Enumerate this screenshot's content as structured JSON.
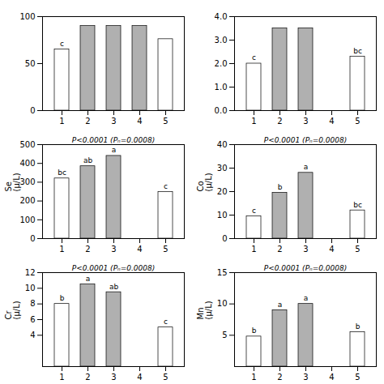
{
  "chart_data": [
    {
      "type": "bar",
      "categories": [
        "1",
        "2",
        "3",
        "4",
        "5"
      ],
      "values": [
        65,
        90,
        90,
        90,
        76
      ],
      "colors": [
        "white",
        "#b0b0b0",
        "#b0b0b0",
        "#b0b0b0",
        "white"
      ],
      "bar_labels": [
        "c",
        null,
        null,
        null,
        null
      ],
      "ylim": [
        0,
        100
      ],
      "yticks": [
        0,
        50,
        100
      ]
    },
    {
      "type": "bar",
      "categories": [
        "1",
        "2",
        "3",
        "4",
        "5"
      ],
      "values": [
        2.0,
        3.5,
        3.5,
        0,
        2.3
      ],
      "colors": [
        "white",
        "#b0b0b0",
        "#b0b0b0",
        "#b0b0b0",
        "white"
      ],
      "bar_labels": [
        "c",
        null,
        null,
        null,
        "bc"
      ],
      "ylim": [
        0,
        4
      ],
      "yticks": [
        0,
        1,
        2,
        3,
        4
      ]
    },
    {
      "type": "bar",
      "categories": [
        "1",
        "2",
        "3",
        "4",
        "5"
      ],
      "values": [
        320,
        385,
        440,
        0,
        248
      ],
      "colors": [
        "white",
        "#b0b0b0",
        "#b0b0b0",
        "#b0b0b0",
        "white"
      ],
      "bar_labels": [
        "bc",
        "ab",
        "a",
        null,
        "c"
      ],
      "ylabel": "Se\n(μ/L)",
      "annotation": "P<0.0001 (Pₙ=0.0008)",
      "ylim": [
        0,
        500
      ],
      "yticks": [
        0,
        100,
        200,
        300,
        400,
        500
      ]
    },
    {
      "type": "bar",
      "categories": [
        "1",
        "2",
        "3",
        "4",
        "5"
      ],
      "values": [
        9.5,
        19.5,
        28,
        0,
        12
      ],
      "colors": [
        "white",
        "#b0b0b0",
        "#b0b0b0",
        "#b0b0b0",
        "white"
      ],
      "bar_labels": [
        "c",
        "b",
        "a",
        null,
        "bc"
      ],
      "ylabel": "Co\n(μ/L)",
      "annotation": "P<0.0001 (Pₙ=0.0008)",
      "ylim": [
        0,
        40
      ],
      "yticks": [
        0,
        10,
        20,
        30,
        40
      ]
    },
    {
      "type": "bar",
      "categories": [
        "1",
        "2",
        "3",
        "4",
        "5"
      ],
      "values": [
        8.0,
        10.5,
        9.5,
        0,
        5.0
      ],
      "colors": [
        "white",
        "#b0b0b0",
        "#b0b0b0",
        "#b0b0b0",
        "white"
      ],
      "bar_labels": [
        "b",
        "a",
        "ab",
        null,
        "c"
      ],
      "ylabel": "Cr\n(μ/L)",
      "annotation": "P<0.0001 (Pₙ=0.0008)",
      "ylim": [
        0,
        12
      ],
      "yticks": [
        4,
        6,
        8,
        10,
        12
      ]
    },
    {
      "type": "bar",
      "categories": [
        "1",
        "2",
        "3",
        "4",
        "5"
      ],
      "values": [
        4.8,
        9.0,
        10.0,
        0,
        5.5
      ],
      "colors": [
        "white",
        "#b0b0b0",
        "#b0b0b0",
        "#b0b0b0",
        "white"
      ],
      "bar_labels": [
        "b",
        "a",
        "a",
        null,
        "b"
      ],
      "ylabel": "Mn\n(μ/L)",
      "annotation": "P<0.0001 (Pₙ=0.0008)",
      "ylim": [
        0,
        15
      ],
      "yticks": [
        5,
        10,
        15
      ]
    }
  ]
}
